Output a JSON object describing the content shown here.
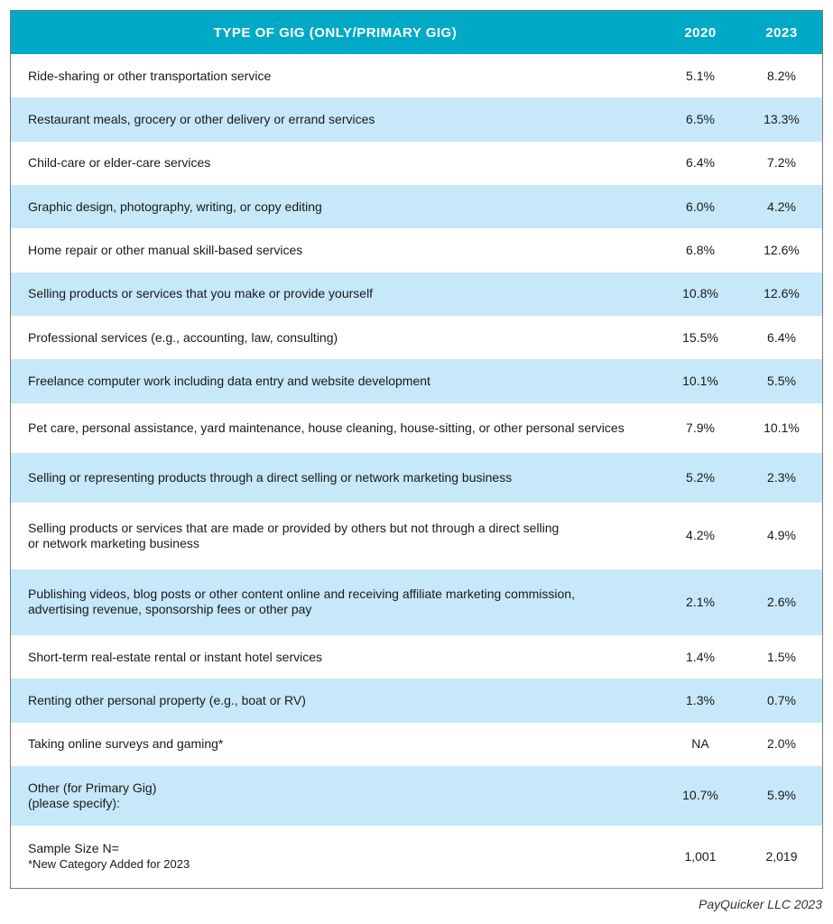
{
  "header": {
    "type_col": "TYPE OF GIG (ONLY/PRIMARY GIG)",
    "col_2020": "2020",
    "col_2023": "2023"
  },
  "rows": [
    {
      "type": "Ride-sharing or other transportation service",
      "v2020": "5.1%",
      "v2023": "8.2%"
    },
    {
      "type": "Restaurant meals, grocery or other delivery or errand services",
      "v2020": "6.5%",
      "v2023": "13.3%"
    },
    {
      "type": "Child-care or elder-care services",
      "v2020": "6.4%",
      "v2023": "7.2%"
    },
    {
      "type": "Graphic design, photography, writing, or copy editing",
      "v2020": "6.0%",
      "v2023": "4.2%"
    },
    {
      "type": "Home repair or other manual skill-based services",
      "v2020": "6.8%",
      "v2023": "12.6%"
    },
    {
      "type": "Selling products or services that you make or provide yourself",
      "v2020": "10.8%",
      "v2023": "12.6%"
    },
    {
      "type": "Professional services (e.g., accounting, law, consulting)",
      "v2020": "15.5%",
      "v2023": "6.4%"
    },
    {
      "type": "Freelance computer work including data entry and website development",
      "v2020": "10.1%",
      "v2023": "5.5%"
    },
    {
      "type": "Pet care, personal assistance, yard maintenance, house cleaning, house-sitting, or other personal services",
      "v2020": "7.9%",
      "v2023": "10.1%"
    },
    {
      "type": "Selling or representing products through a direct selling or network marketing business",
      "v2020": "5.2%",
      "v2023": "2.3%"
    },
    {
      "type_line1": "Selling products or services that are made or provided by others but not through a direct selling",
      "type_line2": "or network marketing business",
      "v2020": "4.2%",
      "v2023": "4.9%"
    },
    {
      "type_line1": "Publishing videos, blog posts or other content online and receiving affiliate marketing commission,",
      "type_line2": "advertising revenue, sponsorship fees or other pay",
      "v2020": "2.1%",
      "v2023": "2.6%"
    },
    {
      "type": "Short-term real-estate rental or instant hotel services",
      "v2020": "1.4%",
      "v2023": "1.5%"
    },
    {
      "type": "Renting other personal property (e.g., boat or RV)",
      "v2020": "1.3%",
      "v2023": "0.7%"
    },
    {
      "type": "Taking online surveys and gaming*",
      "v2020": "NA",
      "v2023": "2.0%"
    },
    {
      "type_line1": "Other (for Primary Gig)",
      "type_line2": "(please specify):",
      "v2020": "10.7%",
      "v2023": "5.9%"
    }
  ],
  "sample": {
    "label": "Sample Size N=",
    "note": "*New Category Added for 2023",
    "v2020": "1,001",
    "v2023": "2,019"
  },
  "credit": "PayQuicker LLC 2023",
  "colors": {
    "header_bg": "#00aac6",
    "stripe_bg": "#c6e8f8"
  }
}
